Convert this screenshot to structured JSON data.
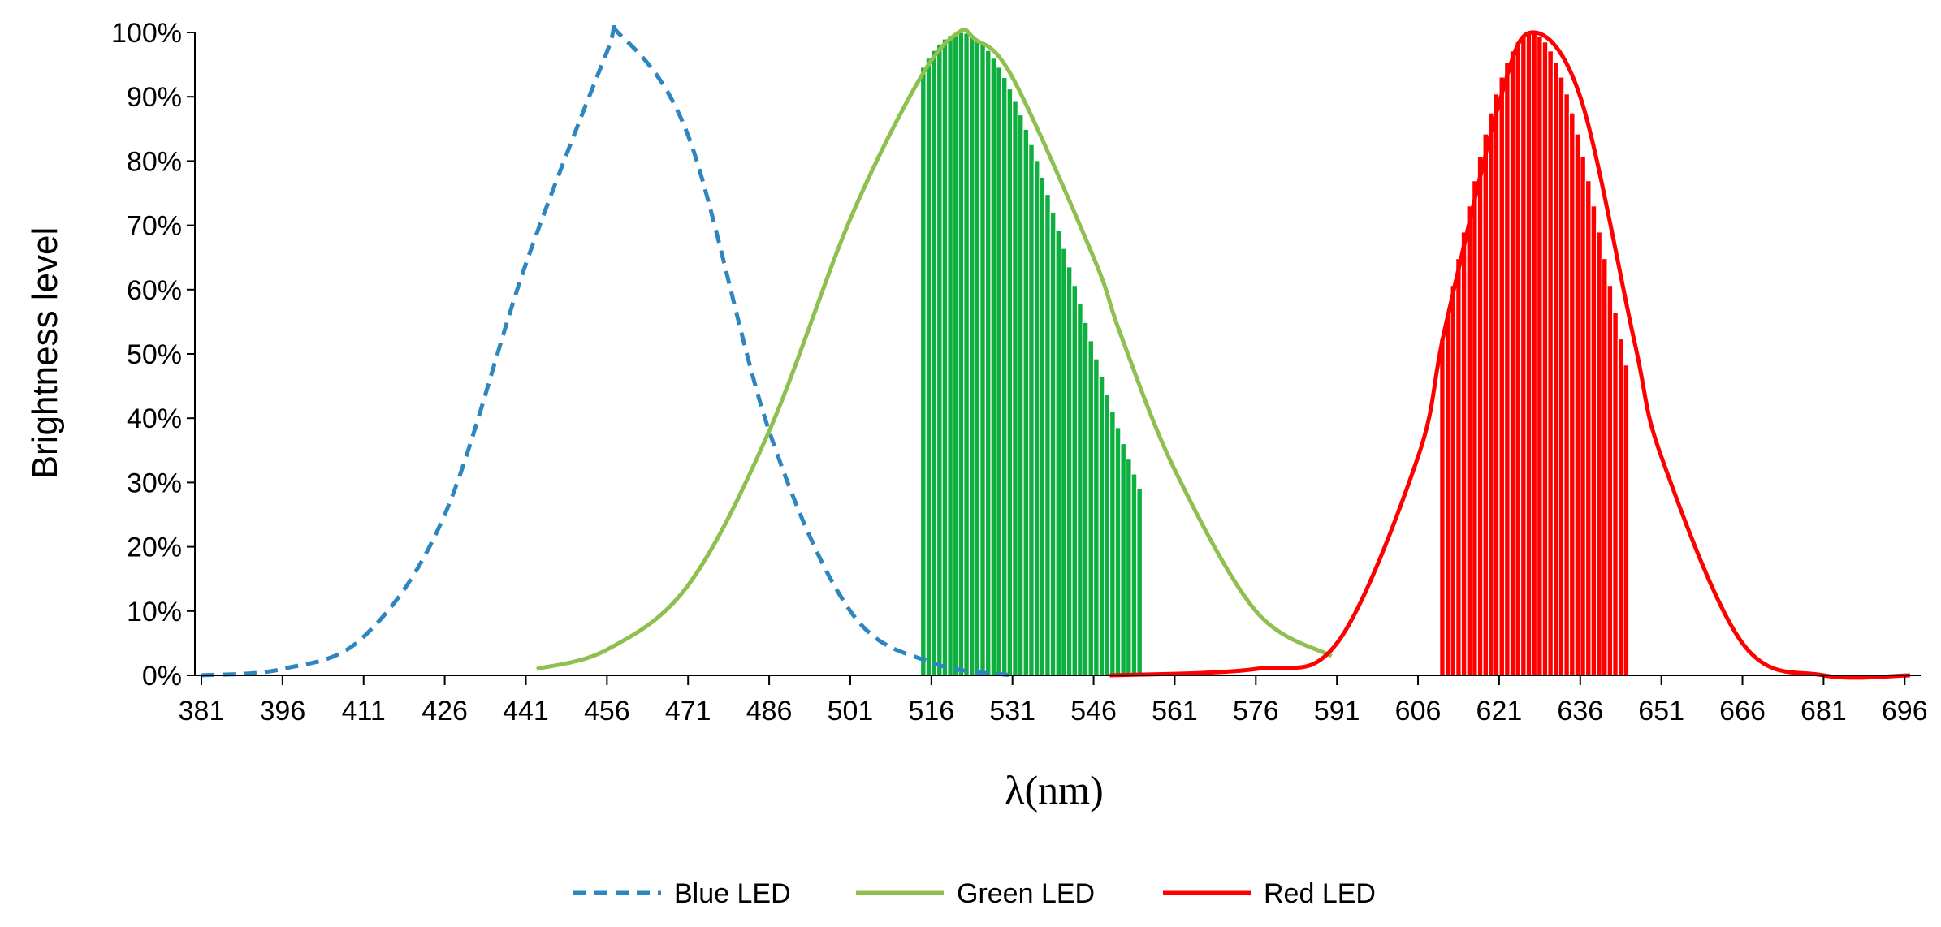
{
  "chart_data": {
    "type": "line",
    "title": "",
    "xlabel": "λ(nm)",
    "ylabel": "Brightness level",
    "xlim": [
      381,
      700
    ],
    "ylim": [
      0,
      100
    ],
    "x_ticks": [
      "381",
      "396",
      "411",
      "426",
      "441",
      "456",
      "471",
      "486",
      "501",
      "516",
      "531",
      "546",
      "561",
      "576",
      "591",
      "606",
      "621",
      "636",
      "651",
      "666",
      "681",
      "696"
    ],
    "y_ticks": [
      "0%",
      "10%",
      "20%",
      "30%",
      "40%",
      "50%",
      "60%",
      "70%",
      "80%",
      "90%",
      "100%"
    ],
    "grid": false,
    "legend_position": "bottom",
    "series": [
      {
        "name": "Blue LED",
        "color": "#2E86C1",
        "style": "dashed",
        "x": [
          381,
          396,
          411,
          426,
          441,
          456,
          458,
          471,
          486,
          501,
          516,
          531
        ],
        "y": [
          0,
          1,
          6,
          25,
          64,
          97,
          100,
          84,
          38,
          10,
          2,
          0
        ]
      },
      {
        "name": "Green LED",
        "color": "#8DC04F",
        "style": "solid",
        "x": [
          443,
          456,
          471,
          486,
          501,
          514,
          521,
          524,
          531,
          546,
          551,
          561,
          576,
          590
        ],
        "y": [
          1,
          4,
          14,
          38,
          71,
          93,
          100,
          99,
          93,
          65,
          53,
          32,
          10,
          3
        ]
      },
      {
        "name": "Red LED",
        "color": "#FF0000",
        "style": "solid",
        "x": [
          549,
          576,
          591,
          606,
          611,
          621,
          627,
          636,
          646,
          651,
          666,
          681,
          697
        ],
        "y": [
          0,
          1,
          5,
          34,
          54,
          89,
          100,
          90,
          52,
          34,
          5,
          0,
          0
        ]
      }
    ],
    "filled_regions": [
      {
        "color": "#0DAF3E",
        "x_start": 514,
        "x_end": 555,
        "peak_x": 521.5,
        "sigma": 21,
        "step_nm": 1
      },
      {
        "color": "#FF0000",
        "x_start": 610,
        "x_end": 645,
        "peak_x": 627,
        "sigma": 14.5,
        "step_nm": 1
      }
    ]
  },
  "legend": {
    "blue": "Blue LED",
    "green": "Green LED",
    "red": "Red LED"
  },
  "axis": {
    "xlabel": "λ(nm)",
    "ylabel": "Brightness level"
  }
}
